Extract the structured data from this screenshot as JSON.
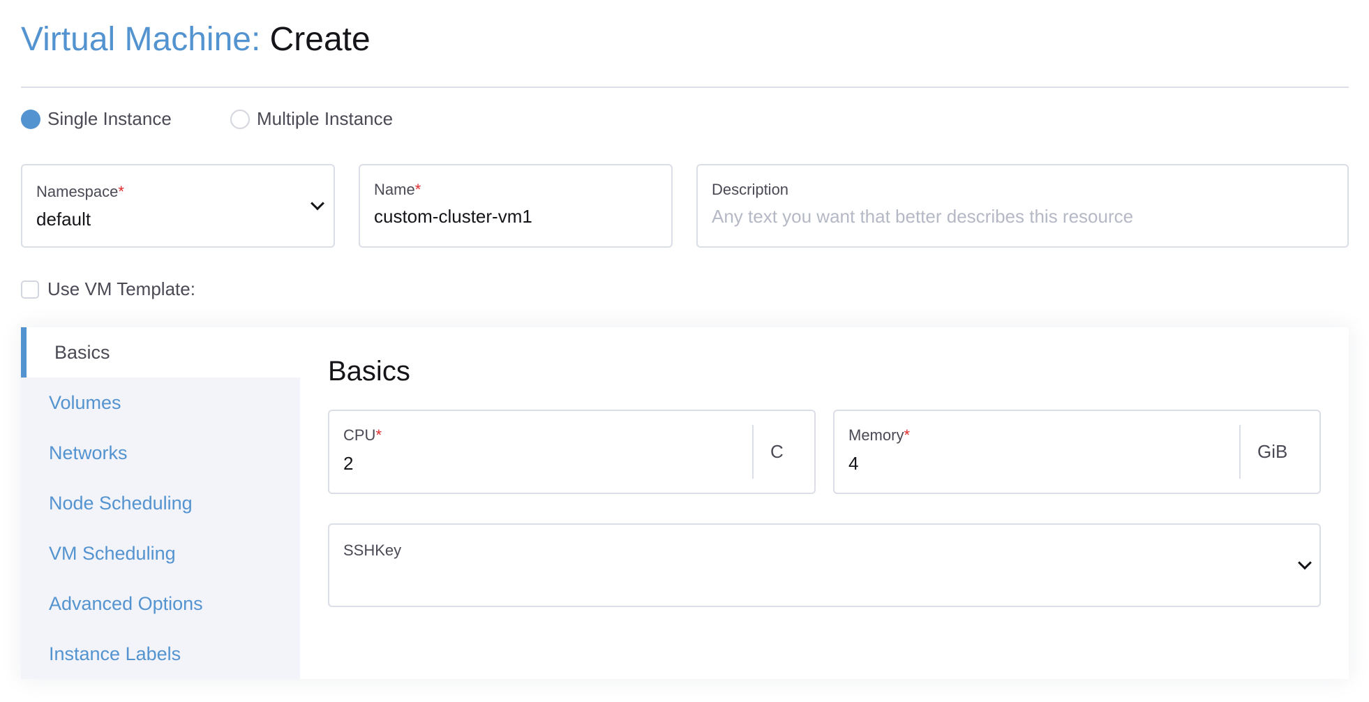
{
  "header": {
    "title_prefix": "Virtual Machine:",
    "title_action": "Create"
  },
  "mode": {
    "options": [
      {
        "label": "Single Instance",
        "selected": true
      },
      {
        "label": "Multiple Instance",
        "selected": false
      }
    ]
  },
  "fields": {
    "namespace": {
      "label": "Namespace",
      "required_mark": "*",
      "value": "default"
    },
    "name": {
      "label": "Name",
      "required_mark": "*",
      "value": "custom-cluster-vm1"
    },
    "description": {
      "label": "Description",
      "placeholder": "Any text you want that better describes this resource"
    }
  },
  "use_template": {
    "label": "Use VM Template:",
    "checked": false
  },
  "sidebar": {
    "items": [
      {
        "label": "Basics",
        "active": true
      },
      {
        "label": "Volumes"
      },
      {
        "label": "Networks"
      },
      {
        "label": "Node Scheduling"
      },
      {
        "label": "VM Scheduling"
      },
      {
        "label": "Advanced Options"
      },
      {
        "label": "Instance Labels"
      }
    ]
  },
  "basics": {
    "heading": "Basics",
    "cpu": {
      "label": "CPU",
      "required_mark": "*",
      "value": "2",
      "unit": "C"
    },
    "memory": {
      "label": "Memory",
      "required_mark": "*",
      "value": "4",
      "unit": "GiB"
    },
    "sshkey": {
      "label": "SSHKey"
    }
  },
  "colors": {
    "accent": "#5393d0",
    "required": "#e02a2a",
    "border": "#dcdee7",
    "sidebar_bg": "#f3f4f9"
  }
}
